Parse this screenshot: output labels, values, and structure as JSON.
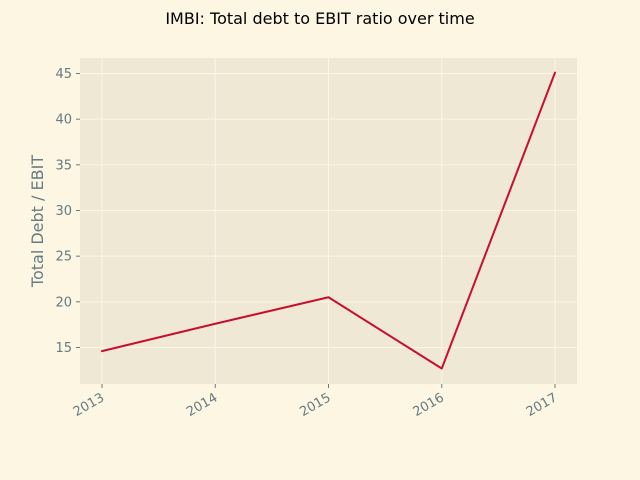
{
  "chart_data": {
    "type": "line",
    "title": "IMBI: Total debt to EBIT ratio over time",
    "xlabel": "",
    "ylabel": "Total Debt / EBIT",
    "x": [
      "2013",
      "2014",
      "2015",
      "2016",
      "2017"
    ],
    "series": [
      {
        "values": [
          14.6,
          17.6,
          20.5,
          12.7,
          45.1
        ]
      }
    ],
    "ylim": [
      11.0,
      46.7
    ],
    "yticks": [
      15,
      20,
      25,
      30,
      35,
      40,
      45
    ],
    "grid": true,
    "colors": {
      "background": "#fdf6e3",
      "plot_background": "#eee8d5",
      "grid": "#fdf6e3",
      "line": "#c8102e",
      "tick_text": "#657b83"
    }
  }
}
